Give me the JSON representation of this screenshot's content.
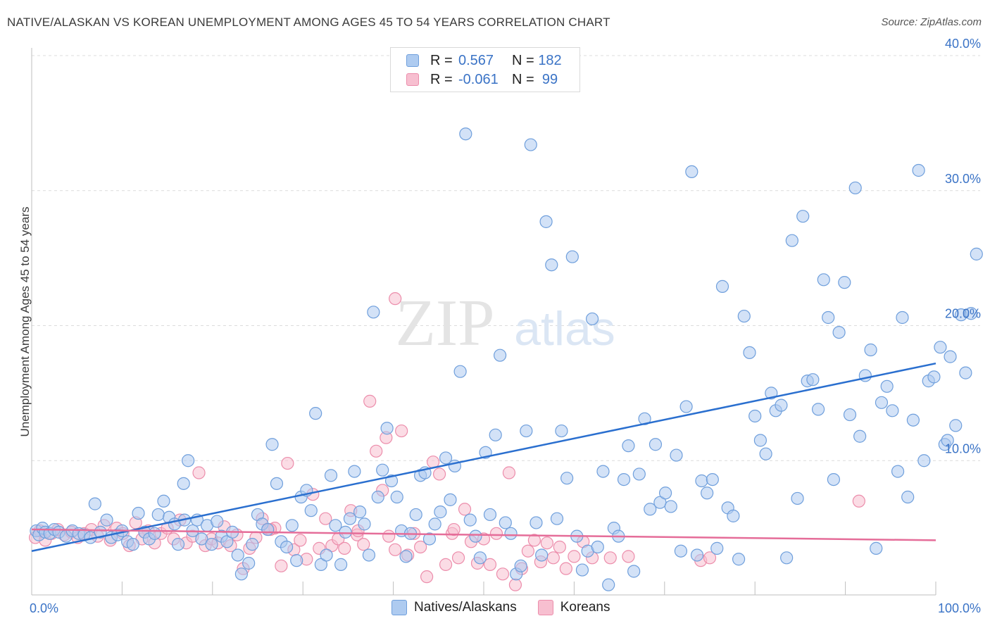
{
  "title": "NATIVE/ALASKAN VS KOREAN UNEMPLOYMENT AMONG AGES 45 TO 54 YEARS CORRELATION CHART",
  "source": "Source: ZipAtlas.com",
  "watermark": {
    "zip": "ZIP",
    "atlas": "atlas"
  },
  "legend": {
    "natives": {
      "r_label": "R =",
      "r_value": "0.567",
      "n_label": "N =",
      "n_value": "182"
    },
    "koreans": {
      "r_label": "R =",
      "r_value": "-0.061",
      "n_label": "N =",
      "n_value": "99"
    }
  },
  "bottom_legend": {
    "natives": "Natives/Alaskans",
    "koreans": "Koreans"
  },
  "colors": {
    "natives_fill": "#aecbf0",
    "natives_stroke": "#6f9fdc",
    "natives_line": "#2a6fcf",
    "koreans_fill": "#f7bfd0",
    "koreans_stroke": "#ec8dab",
    "koreans_line": "#e56d99",
    "axis_text": "#3a73c6",
    "grid": "#dcdcdc"
  },
  "chart_data": {
    "type": "scatter",
    "title": "NATIVE/ALASKAN VS KOREAN UNEMPLOYMENT AMONG AGES 45 TO 54 YEARS CORRELATION CHART",
    "xlabel": "",
    "ylabel": "Unemployment Among Ages 45 to 54 years",
    "xlim": [
      0,
      100
    ],
    "ylim": [
      0,
      40
    ],
    "x_tick_labels": [
      "0.0%",
      "100.0%"
    ],
    "y_ticks": [
      10,
      20,
      30,
      40
    ],
    "y_tick_labels": [
      "10.0%",
      "20.0%",
      "30.0%",
      "40.0%"
    ],
    "series": [
      {
        "name": "Natives/Alaskans",
        "r": 0.567,
        "n": 182,
        "trend": {
          "x": [
            0,
            100
          ],
          "y": [
            3.3,
            17.2
          ]
        },
        "points": [
          [
            0.5,
            4.8
          ],
          [
            0.8,
            4.5
          ],
          [
            1.2,
            5.0
          ],
          [
            1.5,
            4.7
          ],
          [
            2.0,
            4.6
          ],
          [
            2.5,
            4.9
          ],
          [
            3.0,
            4.7
          ],
          [
            3.8,
            4.4
          ],
          [
            4.5,
            4.8
          ],
          [
            5.2,
            4.6
          ],
          [
            5.8,
            4.5
          ],
          [
            6.5,
            4.3
          ],
          [
            7.0,
            6.8
          ],
          [
            7.6,
            4.7
          ],
          [
            8.3,
            5.6
          ],
          [
            8.8,
            4.3
          ],
          [
            9.5,
            4.5
          ],
          [
            10.0,
            4.8
          ],
          [
            10.6,
            4.0
          ],
          [
            11.2,
            3.8
          ],
          [
            11.8,
            6.1
          ],
          [
            12.5,
            4.7
          ],
          [
            13.0,
            4.2
          ],
          [
            13.6,
            4.6
          ],
          [
            14.0,
            6.0
          ],
          [
            14.6,
            7.0
          ],
          [
            15.2,
            5.8
          ],
          [
            15.8,
            5.3
          ],
          [
            16.2,
            3.8
          ],
          [
            16.8,
            8.3
          ],
          [
            17.3,
            10.0
          ],
          [
            17.8,
            4.8
          ],
          [
            18.3,
            5.6
          ],
          [
            18.8,
            4.2
          ],
          [
            19.4,
            5.2
          ],
          [
            19.9,
            3.8
          ],
          [
            20.5,
            5.5
          ],
          [
            21.0,
            4.4
          ],
          [
            21.6,
            4.0
          ],
          [
            22.2,
            4.7
          ],
          [
            22.8,
            3.0
          ],
          [
            23.2,
            1.6
          ],
          [
            24.0,
            2.4
          ],
          [
            24.4,
            3.8
          ],
          [
            25.0,
            6.0
          ],
          [
            25.5,
            5.3
          ],
          [
            26.1,
            4.9
          ],
          [
            26.6,
            11.2
          ],
          [
            27.1,
            8.3
          ],
          [
            27.6,
            4.0
          ],
          [
            28.2,
            3.6
          ],
          [
            28.8,
            5.2
          ],
          [
            29.3,
            2.6
          ],
          [
            29.8,
            7.3
          ],
          [
            30.4,
            7.8
          ],
          [
            30.9,
            6.3
          ],
          [
            31.4,
            13.5
          ],
          [
            32.0,
            2.3
          ],
          [
            32.6,
            3.0
          ],
          [
            33.1,
            8.9
          ],
          [
            33.6,
            5.2
          ],
          [
            34.2,
            2.3
          ],
          [
            34.7,
            4.7
          ],
          [
            35.2,
            5.7
          ],
          [
            35.7,
            9.2
          ],
          [
            36.3,
            6.2
          ],
          [
            36.8,
            5.3
          ],
          [
            37.3,
            3.0
          ],
          [
            37.8,
            21.0
          ],
          [
            38.3,
            7.3
          ],
          [
            38.8,
            9.3
          ],
          [
            39.3,
            12.4
          ],
          [
            39.8,
            8.5
          ],
          [
            40.4,
            7.3
          ],
          [
            40.9,
            4.8
          ],
          [
            41.4,
            2.9
          ],
          [
            41.9,
            4.6
          ],
          [
            42.5,
            6.0
          ],
          [
            43.0,
            8.9
          ],
          [
            43.5,
            9.1
          ],
          [
            44.0,
            4.2
          ],
          [
            44.6,
            5.3
          ],
          [
            45.2,
            6.2
          ],
          [
            45.8,
            10.2
          ],
          [
            46.3,
            7.1
          ],
          [
            46.8,
            9.6
          ],
          [
            47.4,
            16.6
          ],
          [
            48.0,
            34.2
          ],
          [
            48.5,
            5.6
          ],
          [
            49.1,
            4.4
          ],
          [
            49.6,
            2.8
          ],
          [
            50.2,
            10.6
          ],
          [
            50.7,
            6.0
          ],
          [
            51.3,
            11.9
          ],
          [
            51.8,
            17.8
          ],
          [
            52.4,
            5.4
          ],
          [
            53.0,
            4.6
          ],
          [
            53.6,
            1.6
          ],
          [
            54.1,
            2.2
          ],
          [
            54.7,
            12.2
          ],
          [
            55.2,
            33.4
          ],
          [
            55.8,
            5.4
          ],
          [
            56.4,
            3.0
          ],
          [
            56.9,
            27.7
          ],
          [
            57.5,
            24.5
          ],
          [
            58.1,
            5.7
          ],
          [
            58.6,
            12.2
          ],
          [
            59.2,
            8.7
          ],
          [
            59.8,
            25.1
          ],
          [
            60.3,
            4.4
          ],
          [
            60.9,
            1.9
          ],
          [
            61.5,
            3.3
          ],
          [
            62.0,
            20.5
          ],
          [
            62.6,
            3.6
          ],
          [
            63.2,
            9.2
          ],
          [
            63.8,
            0.8
          ],
          [
            64.4,
            5.0
          ],
          [
            64.9,
            4.4
          ],
          [
            65.5,
            8.6
          ],
          [
            66.0,
            11.1
          ],
          [
            66.6,
            1.8
          ],
          [
            67.2,
            9.0
          ],
          [
            67.8,
            13.1
          ],
          [
            68.4,
            6.4
          ],
          [
            69.0,
            11.2
          ],
          [
            69.5,
            6.9
          ],
          [
            70.1,
            7.6
          ],
          [
            70.7,
            6.6
          ],
          [
            71.3,
            10.4
          ],
          [
            71.8,
            3.3
          ],
          [
            72.4,
            14.0
          ],
          [
            73.0,
            31.4
          ],
          [
            73.6,
            3.0
          ],
          [
            74.1,
            8.5
          ],
          [
            74.7,
            7.6
          ],
          [
            75.3,
            8.6
          ],
          [
            75.8,
            3.5
          ],
          [
            76.4,
            22.9
          ],
          [
            77.0,
            6.5
          ],
          [
            77.6,
            5.9
          ],
          [
            78.2,
            2.7
          ],
          [
            78.8,
            20.7
          ],
          [
            79.4,
            18.0
          ],
          [
            80.0,
            13.3
          ],
          [
            80.6,
            11.5
          ],
          [
            81.2,
            10.5
          ],
          [
            81.8,
            15.0
          ],
          [
            82.3,
            13.7
          ],
          [
            82.9,
            14.1
          ],
          [
            83.5,
            2.8
          ],
          [
            84.1,
            26.3
          ],
          [
            84.7,
            7.2
          ],
          [
            85.3,
            28.1
          ],
          [
            85.8,
            15.9
          ],
          [
            86.4,
            16.0
          ],
          [
            87.0,
            13.8
          ],
          [
            87.6,
            23.4
          ],
          [
            88.1,
            20.6
          ],
          [
            88.7,
            8.6
          ],
          [
            89.3,
            19.5
          ],
          [
            89.9,
            23.2
          ],
          [
            90.5,
            13.4
          ],
          [
            91.1,
            30.2
          ],
          [
            91.6,
            11.8
          ],
          [
            92.2,
            16.3
          ],
          [
            92.8,
            18.2
          ],
          [
            93.4,
            3.5
          ],
          [
            94.0,
            14.3
          ],
          [
            94.6,
            15.5
          ],
          [
            95.2,
            13.7
          ],
          [
            95.8,
            9.2
          ],
          [
            96.3,
            20.6
          ],
          [
            96.9,
            7.3
          ],
          [
            97.5,
            13.0
          ],
          [
            98.1,
            31.5
          ],
          [
            98.7,
            10.0
          ],
          [
            99.2,
            15.9
          ],
          [
            99.8,
            16.2
          ],
          [
            100.5,
            18.4
          ],
          [
            101.0,
            11.2
          ],
          [
            101.6,
            17.7
          ],
          [
            102.2,
            12.6
          ],
          [
            102.8,
            20.8
          ],
          [
            103.3,
            16.5
          ],
          [
            103.9,
            20.9
          ],
          [
            104.5,
            25.3
          ],
          [
            101.3,
            11.5
          ],
          [
            16.9,
            5.6
          ]
        ]
      },
      {
        "name": "Koreans",
        "r": -0.061,
        "n": 99,
        "trend": {
          "x": [
            0,
            100
          ],
          "y": [
            4.9,
            4.1
          ]
        },
        "points": [
          [
            0.4,
            4.3
          ],
          [
            0.9,
            4.8
          ],
          [
            1.5,
            4.1
          ],
          [
            2.2,
            4.6
          ],
          [
            2.9,
            4.9
          ],
          [
            3.6,
            4.5
          ],
          [
            4.4,
            4.7
          ],
          [
            5.1,
            4.3
          ],
          [
            5.8,
            4.6
          ],
          [
            6.6,
            4.9
          ],
          [
            7.3,
            4.4
          ],
          [
            8.0,
            5.2
          ],
          [
            8.7,
            4.1
          ],
          [
            9.4,
            5.0
          ],
          [
            10.1,
            4.6
          ],
          [
            10.8,
            3.7
          ],
          [
            11.5,
            5.4
          ],
          [
            12.2,
            4.2
          ],
          [
            12.9,
            4.8
          ],
          [
            13.6,
            3.9
          ],
          [
            14.3,
            4.6
          ],
          [
            15.0,
            5.0
          ],
          [
            15.7,
            4.2
          ],
          [
            16.4,
            5.6
          ],
          [
            17.1,
            3.9
          ],
          [
            17.8,
            4.4
          ],
          [
            18.5,
            9.1
          ],
          [
            19.2,
            3.7
          ],
          [
            19.9,
            4.2
          ],
          [
            20.6,
            3.9
          ],
          [
            21.3,
            5.1
          ],
          [
            22.0,
            3.7
          ],
          [
            22.7,
            4.5
          ],
          [
            23.4,
            2.0
          ],
          [
            24.1,
            3.5
          ],
          [
            24.8,
            4.3
          ],
          [
            25.5,
            5.7
          ],
          [
            26.2,
            4.9
          ],
          [
            26.9,
            5.0
          ],
          [
            27.6,
            2.2
          ],
          [
            28.3,
            9.8
          ],
          [
            29.0,
            3.4
          ],
          [
            29.7,
            4.1
          ],
          [
            30.4,
            2.7
          ],
          [
            31.1,
            7.5
          ],
          [
            31.8,
            3.5
          ],
          [
            32.5,
            5.7
          ],
          [
            33.2,
            3.7
          ],
          [
            33.9,
            4.2
          ],
          [
            34.6,
            3.5
          ],
          [
            35.3,
            6.3
          ],
          [
            36.0,
            4.5
          ],
          [
            36.7,
            3.8
          ],
          [
            37.4,
            14.4
          ],
          [
            38.1,
            10.7
          ],
          [
            38.8,
            7.8
          ],
          [
            39.5,
            4.4
          ],
          [
            40.2,
            3.4
          ],
          [
            40.9,
            12.2
          ],
          [
            41.6,
            3.0
          ],
          [
            42.3,
            4.6
          ],
          [
            43.0,
            3.6
          ],
          [
            43.7,
            1.4
          ],
          [
            44.4,
            9.9
          ],
          [
            45.1,
            9.0
          ],
          [
            45.8,
            2.3
          ],
          [
            46.5,
            4.6
          ],
          [
            47.2,
            2.8
          ],
          [
            47.9,
            6.4
          ],
          [
            48.6,
            4.0
          ],
          [
            49.3,
            2.4
          ],
          [
            50.0,
            4.2
          ],
          [
            50.7,
            2.3
          ],
          [
            51.4,
            4.6
          ],
          [
            52.1,
            1.6
          ],
          [
            52.8,
            9.1
          ],
          [
            53.5,
            0.8
          ],
          [
            54.2,
            2.0
          ],
          [
            54.9,
            3.3
          ],
          [
            55.6,
            4.1
          ],
          [
            56.3,
            2.5
          ],
          [
            57.0,
            3.9
          ],
          [
            57.7,
            2.8
          ],
          [
            58.4,
            3.6
          ],
          [
            59.1,
            2.0
          ],
          [
            60.0,
            2.9
          ],
          [
            61.0,
            4.0
          ],
          [
            62.0,
            2.8
          ],
          [
            64.0,
            2.8
          ],
          [
            66.0,
            2.9
          ],
          [
            74.0,
            2.6
          ],
          [
            75.0,
            2.8
          ],
          [
            39.2,
            11.7
          ],
          [
            46.7,
            4.9
          ],
          [
            26.4,
            4.9
          ],
          [
            12.5,
            4.7
          ],
          [
            36.1,
            4.8
          ],
          [
            40.2,
            22.0
          ],
          [
            91.5,
            7.0
          ]
        ]
      }
    ]
  }
}
